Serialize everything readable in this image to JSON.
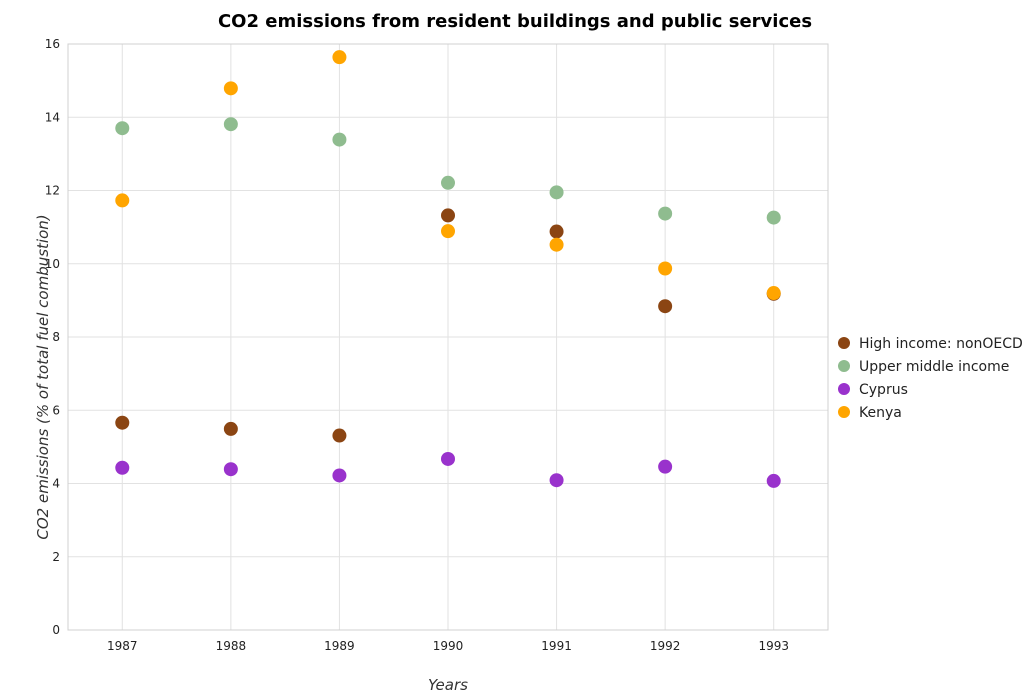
{
  "chart_data": {
    "type": "scatter",
    "title": "CO2 emissions from resident buildings and public services",
    "xlabel": "Years",
    "ylabel": "CO2 emissions (% of total fuel combustion)",
    "categories": [
      "1987",
      "1988",
      "1989",
      "1990",
      "1991",
      "1992",
      "1993"
    ],
    "ylim": [
      0,
      16
    ],
    "yticks": [
      "0",
      "2",
      "4",
      "6",
      "8",
      "10",
      "12",
      "14",
      "16"
    ],
    "grid": true,
    "legend_position": "right",
    "series": [
      {
        "name": "High income: nonOECD",
        "color": "#8b4513",
        "values": [
          5.66,
          5.49,
          5.31,
          11.32,
          10.88,
          8.84,
          9.18
        ]
      },
      {
        "name": "Upper middle income",
        "color": "#8fbc8f",
        "values": [
          13.7,
          13.81,
          13.39,
          12.21,
          11.95,
          11.37,
          11.26
        ]
      },
      {
        "name": "Cyprus",
        "color": "#9932cc",
        "values": [
          4.43,
          4.39,
          4.22,
          4.67,
          4.09,
          4.46,
          4.07
        ]
      },
      {
        "name": "Kenya",
        "color": "#ffa500",
        "values": [
          11.73,
          14.79,
          15.64,
          10.89,
          10.52,
          9.87,
          9.2
        ]
      }
    ]
  }
}
